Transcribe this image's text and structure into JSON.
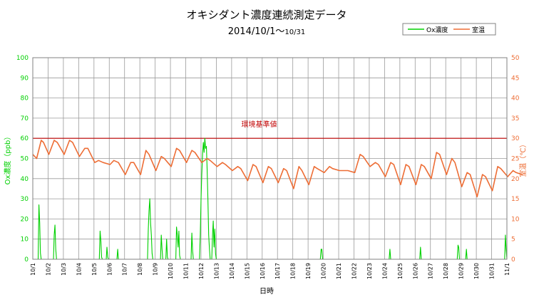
{
  "chart_data": {
    "type": "line",
    "title": "オキシダント濃度連続測定データ",
    "subtitle_main": "2014/10/1～",
    "subtitle_end": "10/31",
    "xlabel": "日時",
    "ylabel_left": "Ox濃度（ppb）",
    "ylabel_right": "室温（℃）",
    "y_left_lim": [
      0,
      100
    ],
    "y_right_lim": [
      0,
      50
    ],
    "y_left_ticks": [
      "0",
      "10",
      "20",
      "30",
      "40",
      "50",
      "60",
      "70",
      "80",
      "90",
      "100"
    ],
    "y_right_ticks": [
      "0",
      "5",
      "10",
      "15",
      "20",
      "25",
      "30",
      "35",
      "40",
      "45",
      "50"
    ],
    "x_tick_labels": [
      "10/1",
      "10/2",
      "10/3",
      "10/4",
      "10/5",
      "10/6",
      "10/7",
      "10/8",
      "10/9",
      "10/10",
      "10/11",
      "10/12",
      "10/13",
      "10/14",
      "10/15",
      "10/16",
      "10/17",
      "10/18",
      "10/19",
      "10/20",
      "10/21",
      "10/22",
      "10/23",
      "10/24",
      "10/25",
      "10/26",
      "10/27",
      "10/28",
      "10/29",
      "10/30",
      "10/31",
      "11/1"
    ],
    "x_unit": "days since 10/1 00:00",
    "threshold": {
      "value": 60,
      "label": "環境基準値",
      "color": "#c00000"
    },
    "grid": true,
    "legend_position": "top-right",
    "series": [
      {
        "name": "Ox濃度",
        "axis": "left",
        "color": "#00d000",
        "points": [
          [
            0,
            0
          ],
          [
            0.35,
            0
          ],
          [
            0.4,
            27
          ],
          [
            0.45,
            18
          ],
          [
            0.5,
            3
          ],
          [
            0.55,
            0
          ],
          [
            1.35,
            0
          ],
          [
            1.4,
            12
          ],
          [
            1.45,
            17
          ],
          [
            1.5,
            5
          ],
          [
            1.55,
            0
          ],
          [
            4.35,
            0
          ],
          [
            4.4,
            14
          ],
          [
            4.45,
            9
          ],
          [
            4.5,
            1
          ],
          [
            4.55,
            0
          ],
          [
            4.8,
            0
          ],
          [
            4.85,
            6
          ],
          [
            4.9,
            1
          ],
          [
            4.95,
            0
          ],
          [
            5.5,
            0
          ],
          [
            5.55,
            5
          ],
          [
            5.6,
            0
          ],
          [
            7.5,
            0
          ],
          [
            7.55,
            15
          ],
          [
            7.6,
            24
          ],
          [
            7.65,
            30
          ],
          [
            7.7,
            18
          ],
          [
            7.75,
            12
          ],
          [
            7.8,
            3
          ],
          [
            7.85,
            0
          ],
          [
            8.35,
            0
          ],
          [
            8.4,
            12
          ],
          [
            8.45,
            5
          ],
          [
            8.5,
            0
          ],
          [
            8.7,
            0
          ],
          [
            8.75,
            10
          ],
          [
            8.8,
            1
          ],
          [
            8.85,
            0
          ],
          [
            9.35,
            0
          ],
          [
            9.4,
            16
          ],
          [
            9.45,
            12
          ],
          [
            9.5,
            6
          ],
          [
            9.55,
            14
          ],
          [
            9.6,
            2
          ],
          [
            9.65,
            0
          ],
          [
            10.35,
            0
          ],
          [
            10.4,
            13
          ],
          [
            10.45,
            4
          ],
          [
            10.5,
            0
          ],
          [
            10.9,
            0
          ],
          [
            10.95,
            12
          ],
          [
            11,
            30
          ],
          [
            11.05,
            42
          ],
          [
            11.1,
            52
          ],
          [
            11.15,
            58
          ],
          [
            11.2,
            53
          ],
          [
            11.25,
            60
          ],
          [
            11.3,
            55
          ],
          [
            11.35,
            56
          ],
          [
            11.4,
            45
          ],
          [
            11.45,
            30
          ],
          [
            11.5,
            12
          ],
          [
            11.55,
            5
          ],
          [
            11.6,
            0
          ],
          [
            11.7,
            0
          ],
          [
            11.75,
            12
          ],
          [
            11.8,
            19
          ],
          [
            11.85,
            6
          ],
          [
            11.9,
            15
          ],
          [
            11.95,
            3
          ],
          [
            12,
            0
          ],
          [
            18.8,
            0
          ],
          [
            18.85,
            5
          ],
          [
            18.9,
            5
          ],
          [
            18.95,
            0
          ],
          [
            23.3,
            0
          ],
          [
            23.35,
            5
          ],
          [
            23.4,
            0
          ],
          [
            25.3,
            0
          ],
          [
            25.35,
            6
          ],
          [
            25.4,
            0
          ],
          [
            27.75,
            0
          ],
          [
            27.8,
            7
          ],
          [
            27.85,
            6
          ],
          [
            27.9,
            0
          ],
          [
            28.3,
            0
          ],
          [
            28.35,
            5
          ],
          [
            28.4,
            0
          ],
          [
            30.85,
            0
          ],
          [
            30.9,
            12
          ],
          [
            30.95,
            5
          ],
          [
            31,
            0
          ]
        ]
      },
      {
        "name": "室温",
        "axis": "right",
        "color": "#ed6d35",
        "points": [
          [
            0,
            26
          ],
          [
            0.25,
            25
          ],
          [
            0.55,
            29.5
          ],
          [
            0.7,
            29
          ],
          [
            1.05,
            26
          ],
          [
            1.4,
            29.5
          ],
          [
            1.6,
            29
          ],
          [
            2.05,
            26
          ],
          [
            2.4,
            29.5
          ],
          [
            2.6,
            29
          ],
          [
            3.05,
            25.5
          ],
          [
            3.4,
            27.5
          ],
          [
            3.6,
            27.5
          ],
          [
            4.05,
            24
          ],
          [
            4.3,
            24.5
          ],
          [
            4.6,
            24
          ],
          [
            5.05,
            23.5
          ],
          [
            5.3,
            24.5
          ],
          [
            5.6,
            24
          ],
          [
            6.05,
            21
          ],
          [
            6.4,
            24
          ],
          [
            6.6,
            24
          ],
          [
            7.05,
            21
          ],
          [
            7.4,
            27
          ],
          [
            7.6,
            26
          ],
          [
            8.05,
            22
          ],
          [
            8.4,
            25.5
          ],
          [
            8.6,
            25
          ],
          [
            9.05,
            23
          ],
          [
            9.4,
            27.5
          ],
          [
            9.6,
            27
          ],
          [
            10.05,
            24
          ],
          [
            10.4,
            27
          ],
          [
            10.6,
            26.5
          ],
          [
            11.05,
            24
          ],
          [
            11.4,
            25
          ],
          [
            11.6,
            24.5
          ],
          [
            12.05,
            23
          ],
          [
            12.4,
            24
          ],
          [
            12.6,
            23.5
          ],
          [
            13.05,
            22
          ],
          [
            13.4,
            23
          ],
          [
            13.6,
            22.5
          ],
          [
            14.05,
            19.5
          ],
          [
            14.4,
            23.5
          ],
          [
            14.6,
            23
          ],
          [
            15.05,
            19
          ],
          [
            15.4,
            23
          ],
          [
            15.6,
            22.5
          ],
          [
            16.05,
            19
          ],
          [
            16.4,
            22.5
          ],
          [
            16.6,
            22
          ],
          [
            17.05,
            17.5
          ],
          [
            17.4,
            23
          ],
          [
            17.6,
            22
          ],
          [
            18.05,
            18.5
          ],
          [
            18.4,
            23
          ],
          [
            18.6,
            22.5
          ],
          [
            19.05,
            21.5
          ],
          [
            19.4,
            23
          ],
          [
            19.6,
            22.5
          ],
          [
            20.05,
            22
          ],
          [
            20.4,
            22
          ],
          [
            20.6,
            22
          ],
          [
            21.05,
            21.5
          ],
          [
            21.4,
            26
          ],
          [
            21.6,
            25.5
          ],
          [
            22.05,
            23
          ],
          [
            22.4,
            24
          ],
          [
            22.6,
            23.5
          ],
          [
            23.05,
            20.5
          ],
          [
            23.4,
            24
          ],
          [
            23.6,
            23.5
          ],
          [
            24.05,
            18.5
          ],
          [
            24.4,
            23.5
          ],
          [
            24.6,
            23
          ],
          [
            25.05,
            18.5
          ],
          [
            25.4,
            23.5
          ],
          [
            25.6,
            23
          ],
          [
            26.05,
            20
          ],
          [
            26.4,
            26.5
          ],
          [
            26.6,
            26
          ],
          [
            27.05,
            21
          ],
          [
            27.4,
            25
          ],
          [
            27.6,
            24
          ],
          [
            28.05,
            18
          ],
          [
            28.4,
            21.5
          ],
          [
            28.6,
            21
          ],
          [
            29.05,
            15.5
          ],
          [
            29.4,
            21
          ],
          [
            29.6,
            20.5
          ],
          [
            30.05,
            17
          ],
          [
            30.4,
            23
          ],
          [
            30.6,
            22.5
          ],
          [
            31.05,
            20.5
          ],
          [
            31.4,
            22
          ],
          [
            31.6,
            21.5
          ],
          [
            32,
            21
          ]
        ]
      }
    ]
  }
}
